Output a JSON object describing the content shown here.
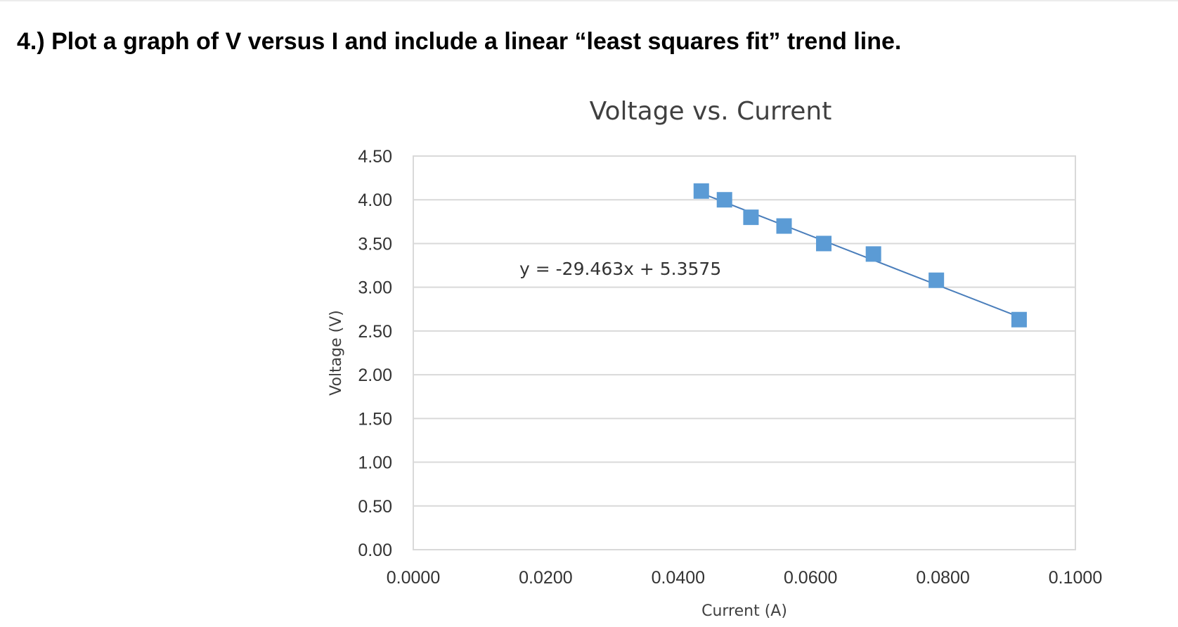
{
  "question": {
    "text": "4.) Plot a graph of V versus I and include a linear “least squares fit” trend line."
  },
  "chart_data": {
    "type": "scatter",
    "title": "Voltage vs. Current",
    "xlabel": "Current (A)",
    "ylabel": "Voltage (V)",
    "xlim": [
      0,
      0.1
    ],
    "ylim": [
      0,
      4.5
    ],
    "x_ticks": [
      "0.0000",
      "0.0200",
      "0.0400",
      "0.0600",
      "0.0800",
      "0.1000"
    ],
    "y_ticks": [
      "0.00",
      "0.50",
      "1.00",
      "1.50",
      "2.00",
      "2.50",
      "3.00",
      "3.50",
      "4.00",
      "4.50"
    ],
    "grid": true,
    "marker_color": "#5B9BD5",
    "trendline_color": "#4A7EBB",
    "series": [
      {
        "x": [
          0.0435,
          0.047,
          0.051,
          0.056,
          0.062,
          0.0695,
          0.079,
          0.0915
        ],
        "y": [
          4.1,
          4.0,
          3.8,
          3.7,
          3.5,
          3.38,
          3.08,
          2.63
        ]
      }
    ],
    "trendline": {
      "type": "linear",
      "slope": -29.463,
      "intercept": 5.3575,
      "x_range": [
        0.0435,
        0.0915
      ],
      "equation": "y = -29.463x + 5.3575"
    }
  }
}
